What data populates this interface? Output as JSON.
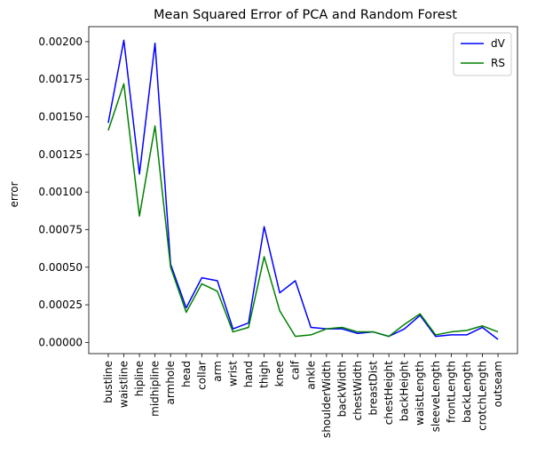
{
  "chart_data": {
    "type": "line",
    "title": "Mean Squared Error of PCA and Random Forest",
    "xlabel": "",
    "ylabel": "error",
    "ylim": [
      -7.45e-05,
      0.0021
    ],
    "yticks": [
      0.0,
      0.00025,
      0.0005,
      0.00075,
      0.001,
      0.00125,
      0.0015,
      0.00175,
      0.002
    ],
    "ytick_labels": [
      "0.00000",
      "0.00025",
      "0.00050",
      "0.00075",
      "0.00100",
      "0.00125",
      "0.00150",
      "0.00175",
      "0.00200"
    ],
    "categories": [
      "bustline",
      "waistline",
      "hipline",
      "midhipline",
      "armhole",
      "head",
      "collar",
      "arm",
      "wrist",
      "hand",
      "thigh",
      "knee",
      "calf",
      "ankle",
      "shoulderWidth",
      "backWidth",
      "chestWidth",
      "breastDist",
      "chestHeight",
      "backHeight",
      "waistLength",
      "sleeveLength",
      "frontLength",
      "backLength",
      "crotchLength",
      "outseam"
    ],
    "series": [
      {
        "name": "dV",
        "color": "#0000ff",
        "values": [
          0.00146,
          0.00201,
          0.00112,
          0.00199,
          0.00052,
          0.00023,
          0.00043,
          0.00041,
          9e-05,
          0.00013,
          0.00077,
          0.00033,
          0.00041,
          0.0001,
          9e-05,
          9e-05,
          6e-05,
          7e-05,
          4e-05,
          9e-05,
          0.00018,
          4e-05,
          5e-05,
          5e-05,
          0.0001,
          2e-05
        ]
      },
      {
        "name": "RS",
        "color": "#008000",
        "values": [
          0.00141,
          0.00172,
          0.00084,
          0.00144,
          0.0005,
          0.0002,
          0.00039,
          0.00034,
          7e-05,
          0.0001,
          0.00057,
          0.00021,
          4e-05,
          5e-05,
          9e-05,
          0.0001,
          7e-05,
          7e-05,
          4e-05,
          0.00012,
          0.00019,
          5e-05,
          7e-05,
          8e-05,
          0.00011,
          7e-05
        ]
      }
    ],
    "legend_position": "top-right",
    "grid": false
  }
}
